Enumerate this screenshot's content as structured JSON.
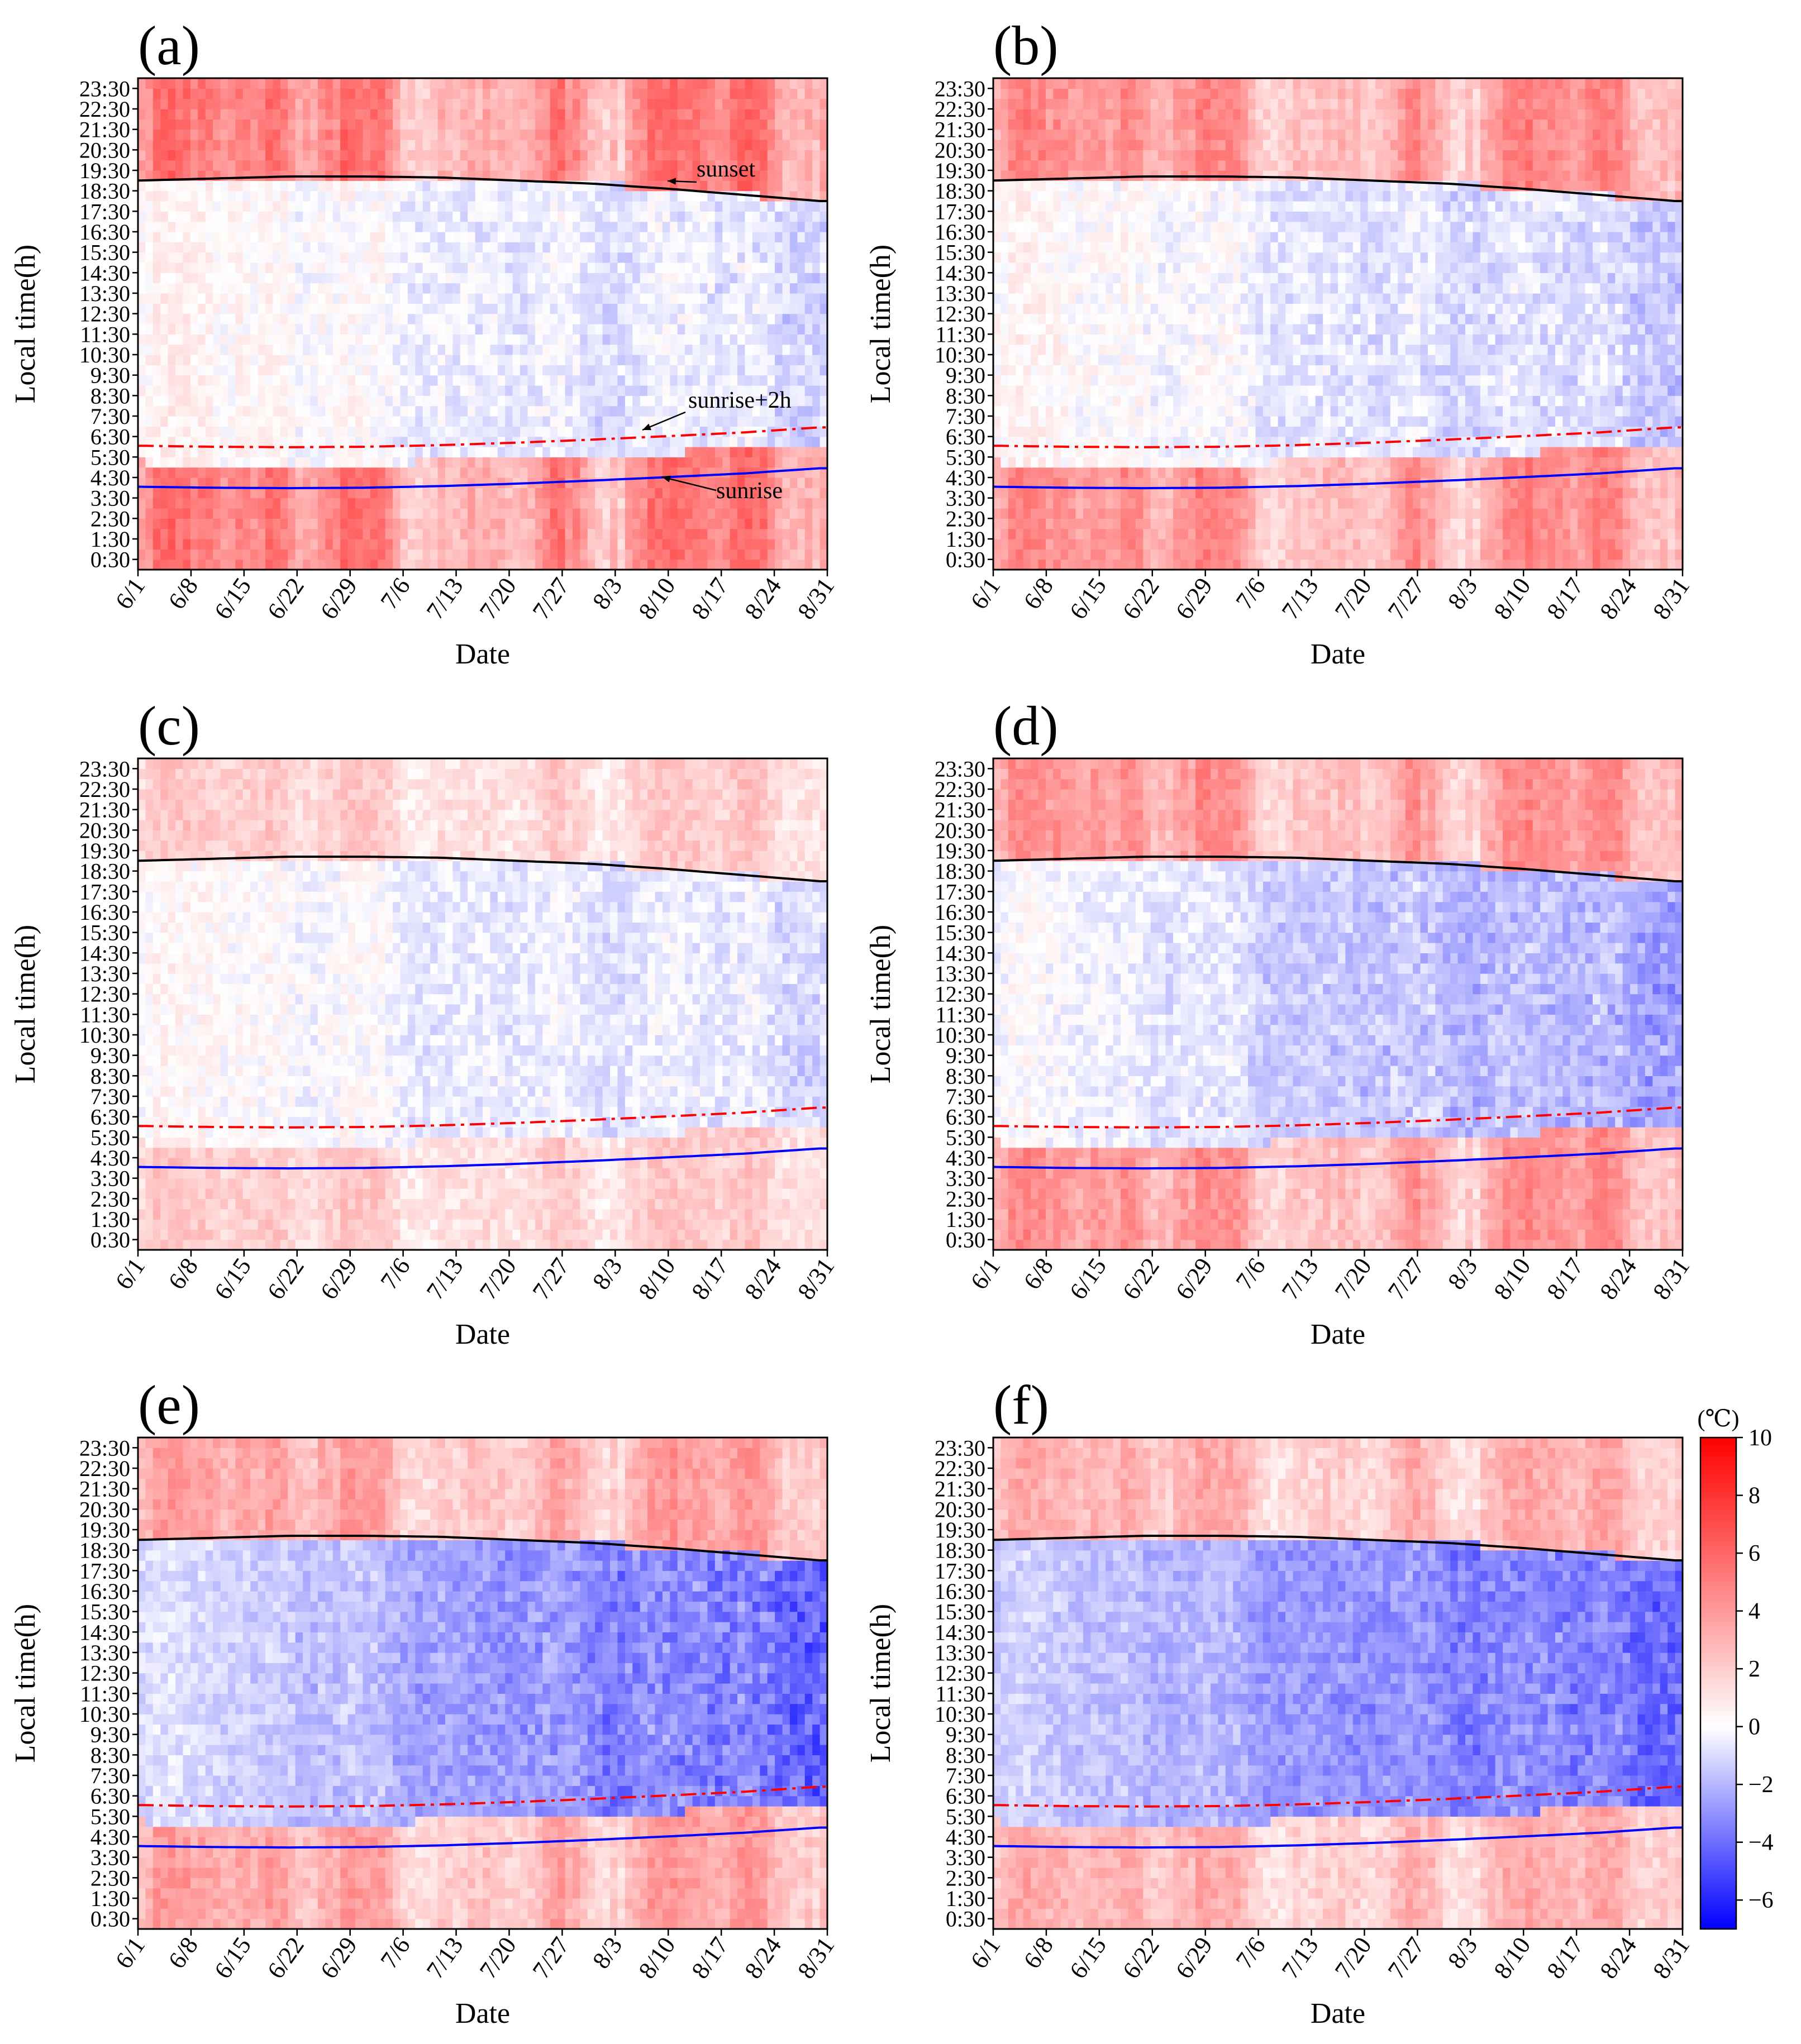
{
  "figure": {
    "colormap": {
      "negative": "#0000ff",
      "zero": "#ffffff",
      "positive": "#ff0000"
    },
    "line_colors": {
      "sunset": "#000000",
      "sunrise": "#0000ff",
      "sunrise_plus_2h": "#ff0000"
    }
  },
  "chart_data": [
    {
      "id": "a",
      "panel_label": "(a)",
      "type": "heatmap",
      "xlabel": "Date",
      "ylabel": "Local time(h)",
      "x_ticks": [
        "6/1",
        "6/8",
        "6/15",
        "6/22",
        "6/29",
        "7/6",
        "7/13",
        "7/20",
        "7/27",
        "8/3",
        "8/10",
        "8/17",
        "8/24",
        "8/31"
      ],
      "y_ticks": [
        "0:30",
        "1:30",
        "2:30",
        "3:30",
        "4:30",
        "5:30",
        "6:30",
        "7:30",
        "8:30",
        "9:30",
        "10:30",
        "11:30",
        "12:30",
        "13:30",
        "14:30",
        "15:30",
        "16:30",
        "17:30",
        "18:30",
        "19:30",
        "20:30",
        "21:30",
        "22:30",
        "23:30"
      ],
      "value_range": [
        -7,
        10
      ],
      "night_intensity": 1.0,
      "day_bias": 0.3,
      "cool_trend": 1.5,
      "annotations": [
        "sunset",
        "sunrise+2h",
        "sunrise"
      ]
    },
    {
      "id": "b",
      "panel_label": "(b)",
      "type": "heatmap",
      "xlabel": "Date",
      "ylabel": "Local time(h)",
      "x_ticks": [
        "6/1",
        "6/8",
        "6/15",
        "6/22",
        "6/29",
        "7/6",
        "7/13",
        "7/20",
        "7/27",
        "8/3",
        "8/10",
        "8/17",
        "8/24",
        "8/31"
      ],
      "y_ticks": [
        "0:30",
        "1:30",
        "2:30",
        "3:30",
        "4:30",
        "5:30",
        "6:30",
        "7:30",
        "8:30",
        "9:30",
        "10:30",
        "11:30",
        "12:30",
        "13:30",
        "14:30",
        "15:30",
        "16:30",
        "17:30",
        "18:30",
        "19:30",
        "20:30",
        "21:30",
        "22:30",
        "23:30"
      ],
      "value_range": [
        -7,
        10
      ],
      "night_intensity": 0.85,
      "day_bias": 0.2,
      "cool_trend": 1.8
    },
    {
      "id": "c",
      "panel_label": "(c)",
      "type": "heatmap",
      "xlabel": "Date",
      "ylabel": "Local time(h)",
      "x_ticks": [
        "6/1",
        "6/8",
        "6/15",
        "6/22",
        "6/29",
        "7/6",
        "7/13",
        "7/20",
        "7/27",
        "8/3",
        "8/10",
        "8/17",
        "8/24",
        "8/31"
      ],
      "y_ticks": [
        "0:30",
        "1:30",
        "2:30",
        "3:30",
        "4:30",
        "5:30",
        "6:30",
        "7:30",
        "8:30",
        "9:30",
        "10:30",
        "11:30",
        "12:30",
        "13:30",
        "14:30",
        "15:30",
        "16:30",
        "17:30",
        "18:30",
        "19:30",
        "20:30",
        "21:30",
        "22:30",
        "23:30"
      ],
      "value_range": [
        -7,
        10
      ],
      "night_intensity": 0.4,
      "day_bias": 0.1,
      "cool_trend": 1.2
    },
    {
      "id": "d",
      "panel_label": "(d)",
      "type": "heatmap",
      "xlabel": "Date",
      "ylabel": "Local time(h)",
      "x_ticks": [
        "6/1",
        "6/8",
        "6/15",
        "6/22",
        "6/29",
        "7/6",
        "7/13",
        "7/20",
        "7/27",
        "8/3",
        "8/10",
        "8/17",
        "8/24",
        "8/31"
      ],
      "y_ticks": [
        "0:30",
        "1:30",
        "2:30",
        "3:30",
        "4:30",
        "5:30",
        "6:30",
        "7:30",
        "8:30",
        "9:30",
        "10:30",
        "11:30",
        "12:30",
        "13:30",
        "14:30",
        "15:30",
        "16:30",
        "17:30",
        "18:30",
        "19:30",
        "20:30",
        "21:30",
        "22:30",
        "23:30"
      ],
      "value_range": [
        -7,
        10
      ],
      "night_intensity": 0.8,
      "day_bias": -0.2,
      "cool_trend": 2.6
    },
    {
      "id": "e",
      "panel_label": "(e)",
      "type": "heatmap",
      "xlabel": "Date",
      "ylabel": "Local time(h)",
      "x_ticks": [
        "6/1",
        "6/8",
        "6/15",
        "6/22",
        "6/29",
        "7/6",
        "7/13",
        "7/20",
        "7/27",
        "8/3",
        "8/10",
        "8/17",
        "8/24",
        "8/31"
      ],
      "y_ticks": [
        "0:30",
        "1:30",
        "2:30",
        "3:30",
        "4:30",
        "5:30",
        "6:30",
        "7:30",
        "8:30",
        "9:30",
        "10:30",
        "11:30",
        "12:30",
        "13:30",
        "14:30",
        "15:30",
        "16:30",
        "17:30",
        "18:30",
        "19:30",
        "20:30",
        "21:30",
        "22:30",
        "23:30"
      ],
      "value_range": [
        -7,
        10
      ],
      "night_intensity": 0.7,
      "day_bias": -1.0,
      "cool_trend": 3.5
    },
    {
      "id": "f",
      "panel_label": "(f)",
      "type": "heatmap",
      "xlabel": "Date",
      "ylabel": "Local time(h)",
      "x_ticks": [
        "6/1",
        "6/8",
        "6/15",
        "6/22",
        "6/29",
        "7/6",
        "7/13",
        "7/20",
        "7/27",
        "8/3",
        "8/10",
        "8/17",
        "8/24",
        "8/31"
      ],
      "y_ticks": [
        "0:30",
        "1:30",
        "2:30",
        "3:30",
        "4:30",
        "5:30",
        "6:30",
        "7:30",
        "8:30",
        "9:30",
        "10:30",
        "11:30",
        "12:30",
        "13:30",
        "14:30",
        "15:30",
        "16:30",
        "17:30",
        "18:30",
        "19:30",
        "20:30",
        "21:30",
        "22:30",
        "23:30"
      ],
      "value_range": [
        -7,
        10
      ],
      "night_intensity": 0.6,
      "day_bias": -1.5,
      "cool_trend": 2.8
    }
  ],
  "curves": {
    "sunset_hours": [
      19.0,
      19.1,
      19.2,
      19.2,
      19.15,
      19.0,
      18.85,
      18.6,
      18.3,
      18.0
    ],
    "sunrise_hours": [
      4.05,
      4.0,
      3.98,
      4.0,
      4.08,
      4.2,
      4.35,
      4.52,
      4.7,
      4.95
    ],
    "sunrise_plus_2h_hours": [
      6.05,
      6.0,
      5.98,
      6.0,
      6.08,
      6.2,
      6.35,
      6.52,
      6.7,
      6.95
    ]
  },
  "colorbar": {
    "unit_label": "(℃)",
    "min": -7,
    "max": 10,
    "ticks": [
      10,
      8,
      6,
      4,
      2,
      0,
      -2,
      -4,
      -6
    ],
    "tick_labels": [
      "10",
      "8",
      "6",
      "4",
      "2",
      "0",
      "−2",
      "−4",
      "−6"
    ]
  }
}
